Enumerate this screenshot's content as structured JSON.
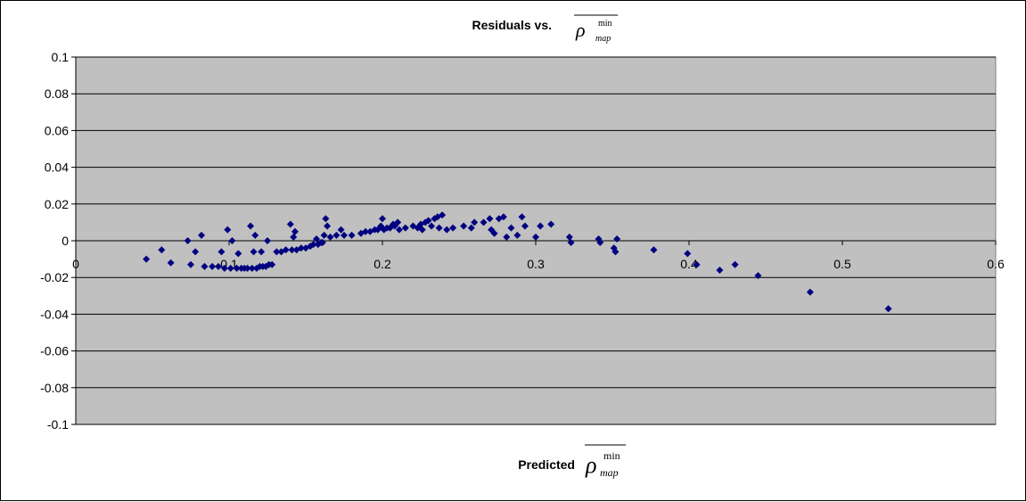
{
  "chart_data": {
    "type": "scatter",
    "title": {
      "prefix": "Residuals vs.",
      "symbol": "ρ",
      "superscript": "min",
      "subscript": "map"
    },
    "xlabel": {
      "prefix": "Predicted",
      "symbol": "ρ",
      "superscript": "min",
      "subscript": "map"
    },
    "xlim": [
      0,
      0.6
    ],
    "ylim": [
      -0.1,
      0.1
    ],
    "x_ticks": [
      "0",
      "0.1",
      "0.2",
      "0.3",
      "0.4",
      "0.5",
      "0.6"
    ],
    "y_ticks": [
      "0.1",
      "0.08",
      "0.06",
      "0.04",
      "0.02",
      "0",
      "-0.02",
      "-0.04",
      "-0.06",
      "-0.08",
      "-0.1"
    ],
    "grid": "horizontal",
    "plot_background": "#c0c0c0",
    "marker_color": "#000080",
    "marker": "diamond",
    "points": [
      [
        0.046,
        -0.01
      ],
      [
        0.056,
        -0.005
      ],
      [
        0.062,
        -0.012
      ],
      [
        0.073,
        0.0
      ],
      [
        0.075,
        -0.013
      ],
      [
        0.078,
        -0.006
      ],
      [
        0.082,
        0.003
      ],
      [
        0.084,
        -0.014
      ],
      [
        0.089,
        -0.014
      ],
      [
        0.093,
        -0.014
      ],
      [
        0.095,
        -0.006
      ],
      [
        0.097,
        -0.015
      ],
      [
        0.099,
        0.006
      ],
      [
        0.101,
        -0.015
      ],
      [
        0.102,
        0.0
      ],
      [
        0.105,
        -0.015
      ],
      [
        0.106,
        -0.007
      ],
      [
        0.108,
        -0.015
      ],
      [
        0.11,
        -0.015
      ],
      [
        0.112,
        -0.015
      ],
      [
        0.114,
        0.008
      ],
      [
        0.115,
        -0.015
      ],
      [
        0.116,
        -0.006
      ],
      [
        0.117,
        0.003
      ],
      [
        0.118,
        -0.015
      ],
      [
        0.12,
        -0.014
      ],
      [
        0.121,
        -0.006
      ],
      [
        0.122,
        -0.014
      ],
      [
        0.124,
        -0.014
      ],
      [
        0.125,
        0.0
      ],
      [
        0.126,
        -0.013
      ],
      [
        0.128,
        -0.013
      ],
      [
        0.131,
        -0.006
      ],
      [
        0.134,
        -0.006
      ],
      [
        0.137,
        -0.005
      ],
      [
        0.14,
        0.009
      ],
      [
        0.141,
        -0.005
      ],
      [
        0.142,
        0.002
      ],
      [
        0.143,
        0.005
      ],
      [
        0.144,
        -0.005
      ],
      [
        0.147,
        -0.004
      ],
      [
        0.15,
        -0.004
      ],
      [
        0.153,
        -0.003
      ],
      [
        0.155,
        -0.002
      ],
      [
        0.157,
        0.001
      ],
      [
        0.158,
        -0.002
      ],
      [
        0.16,
        -0.001
      ],
      [
        0.161,
        -0.001
      ],
      [
        0.162,
        0.003
      ],
      [
        0.163,
        0.012
      ],
      [
        0.164,
        0.008
      ],
      [
        0.166,
        0.002
      ],
      [
        0.17,
        0.003
      ],
      [
        0.173,
        0.006
      ],
      [
        0.175,
        0.003
      ],
      [
        0.18,
        0.003
      ],
      [
        0.186,
        0.004
      ],
      [
        0.189,
        0.005
      ],
      [
        0.192,
        0.005
      ],
      [
        0.195,
        0.006
      ],
      [
        0.197,
        0.006
      ],
      [
        0.199,
        0.008
      ],
      [
        0.2,
        0.012
      ],
      [
        0.201,
        0.006
      ],
      [
        0.203,
        0.007
      ],
      [
        0.205,
        0.007
      ],
      [
        0.207,
        0.009
      ],
      [
        0.208,
        0.008
      ],
      [
        0.21,
        0.01
      ],
      [
        0.211,
        0.006
      ],
      [
        0.215,
        0.007
      ],
      [
        0.22,
        0.008
      ],
      [
        0.223,
        0.007
      ],
      [
        0.225,
        0.009
      ],
      [
        0.226,
        0.006
      ],
      [
        0.228,
        0.01
      ],
      [
        0.23,
        0.011
      ],
      [
        0.232,
        0.008
      ],
      [
        0.234,
        0.012
      ],
      [
        0.236,
        0.013
      ],
      [
        0.237,
        0.007
      ],
      [
        0.239,
        0.014
      ],
      [
        0.242,
        0.006
      ],
      [
        0.246,
        0.007
      ],
      [
        0.253,
        0.008
      ],
      [
        0.258,
        0.007
      ],
      [
        0.26,
        0.01
      ],
      [
        0.266,
        0.01
      ],
      [
        0.27,
        0.012
      ],
      [
        0.271,
        0.006
      ],
      [
        0.273,
        0.004
      ],
      [
        0.276,
        0.012
      ],
      [
        0.279,
        0.013
      ],
      [
        0.281,
        0.002
      ],
      [
        0.284,
        0.007
      ],
      [
        0.288,
        0.003
      ],
      [
        0.291,
        0.013
      ],
      [
        0.293,
        0.008
      ],
      [
        0.3,
        0.002
      ],
      [
        0.303,
        0.008
      ],
      [
        0.31,
        0.009
      ],
      [
        0.322,
        0.002
      ],
      [
        0.323,
        -0.001
      ],
      [
        0.341,
        0.001
      ],
      [
        0.342,
        -0.001
      ],
      [
        0.351,
        -0.004
      ],
      [
        0.352,
        -0.006
      ],
      [
        0.353,
        0.001
      ],
      [
        0.377,
        -0.005
      ],
      [
        0.399,
        -0.007
      ],
      [
        0.405,
        -0.013
      ],
      [
        0.42,
        -0.016
      ],
      [
        0.43,
        -0.013
      ],
      [
        0.445,
        -0.019
      ],
      [
        0.479,
        -0.028
      ],
      [
        0.53,
        -0.037
      ]
    ]
  }
}
